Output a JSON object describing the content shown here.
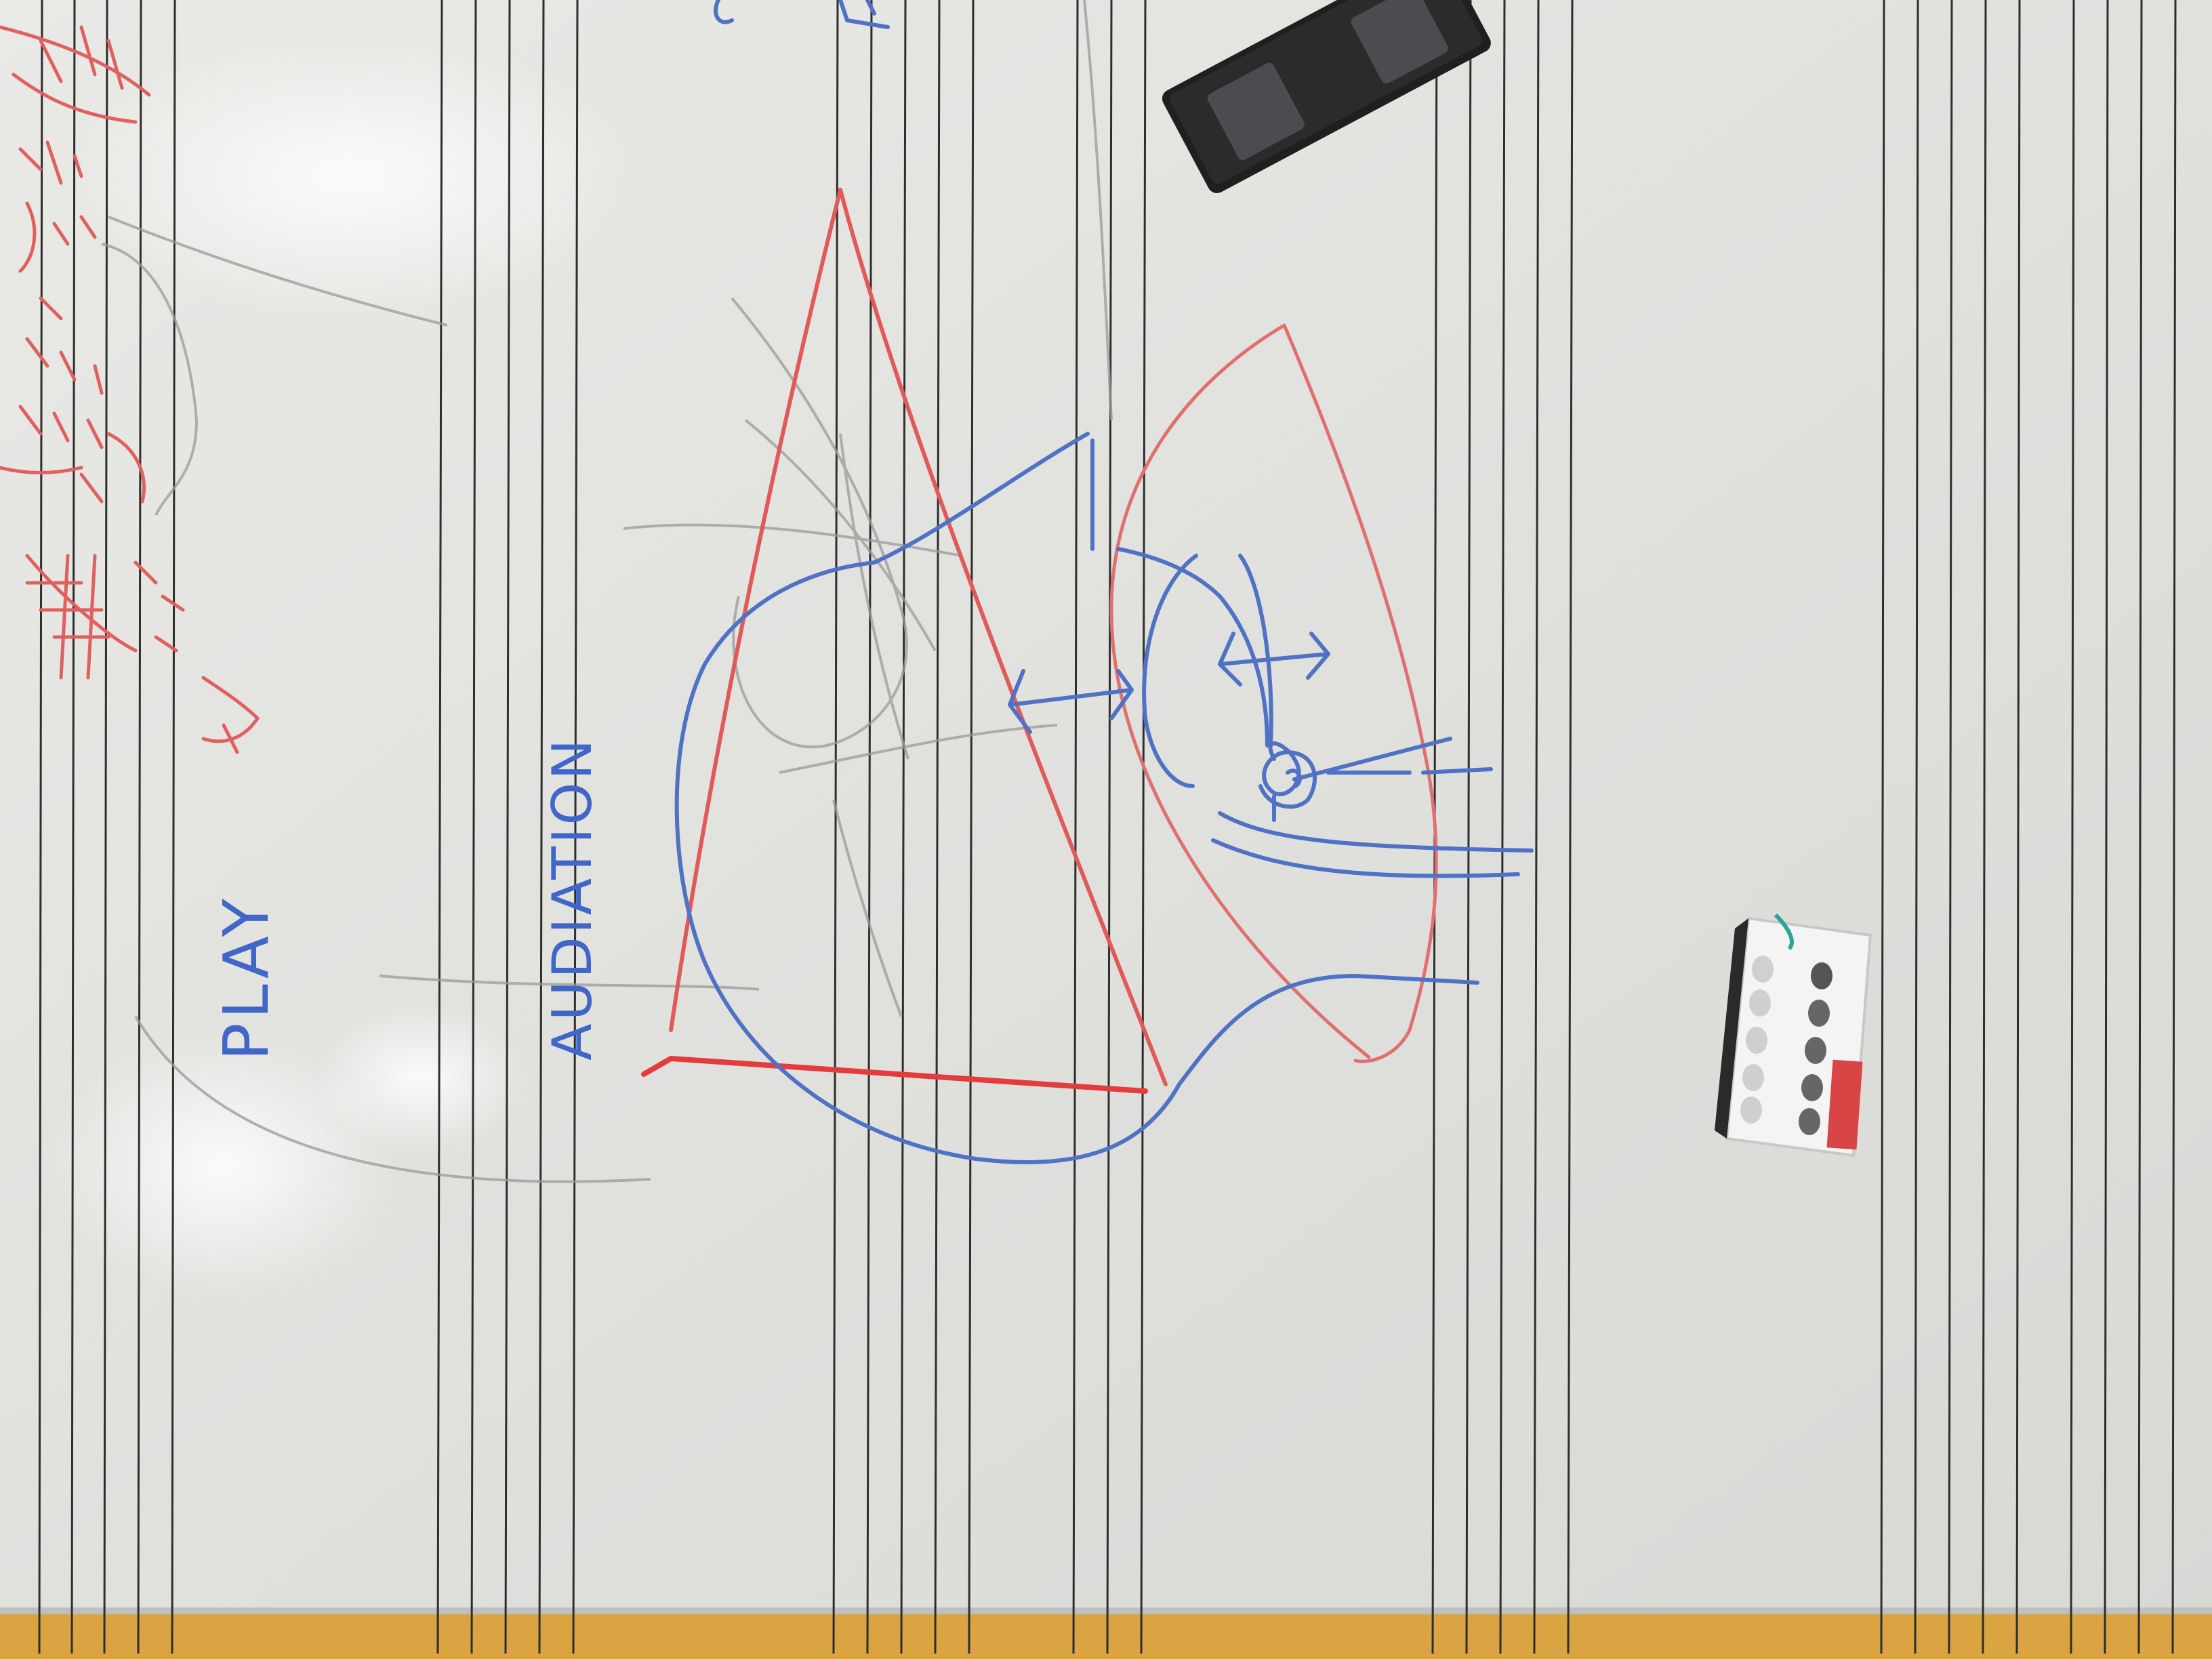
{
  "photo": {
    "subject": "whiteboard",
    "colors": {
      "board": "#e2e2df",
      "board_light": "#ecece9",
      "staff_line": "#2a2a2a",
      "blue_ink": "#4f72c4",
      "red_ink": "#e06060",
      "pencil": "#9a9a98",
      "frame": "#d9a441",
      "eraser": "#1f1f1f",
      "magnet_holder": "#f4f4f4"
    }
  },
  "labels": {
    "play": "PLAY",
    "audiation": "AUDIATION"
  }
}
